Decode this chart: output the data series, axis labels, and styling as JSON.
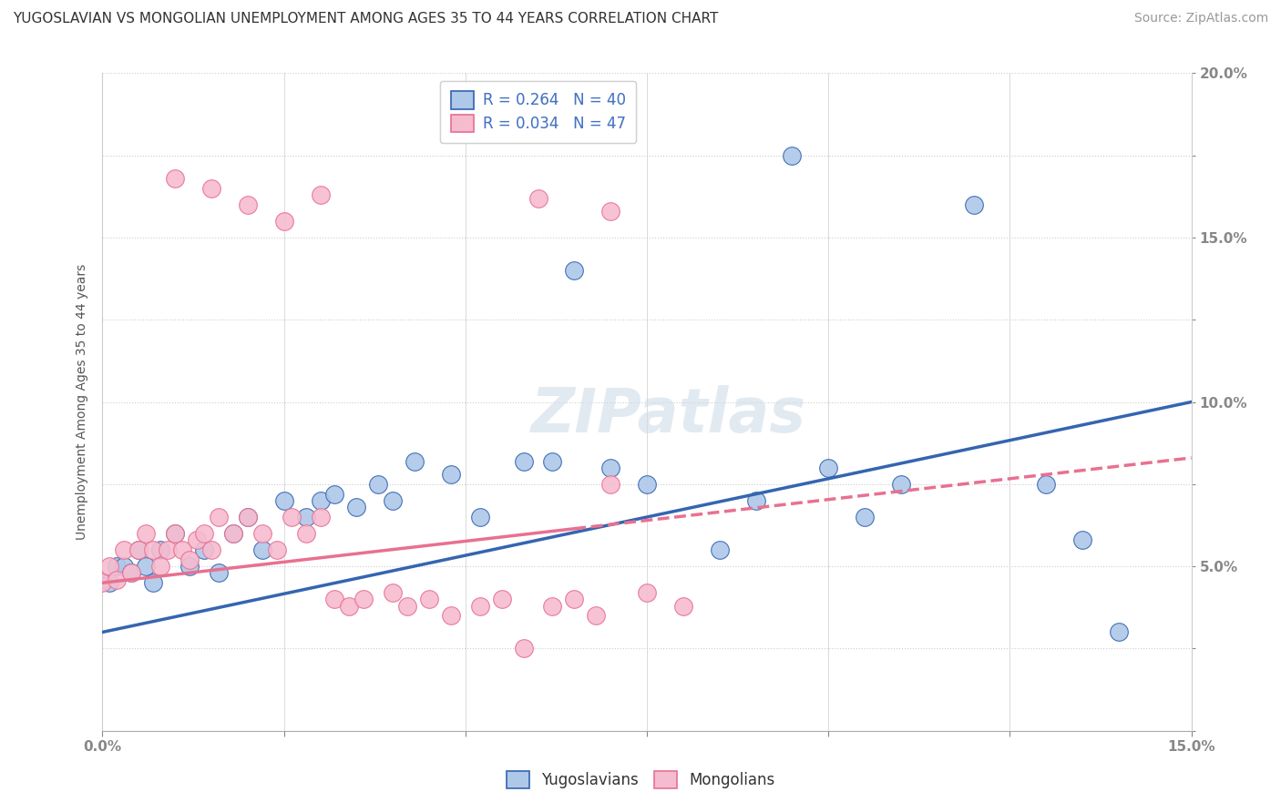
{
  "title": "YUGOSLAVIAN VS MONGOLIAN UNEMPLOYMENT AMONG AGES 35 TO 44 YEARS CORRELATION CHART",
  "source": "Source: ZipAtlas.com",
  "ylabel": "Unemployment Among Ages 35 to 44 years",
  "xlim": [
    0.0,
    0.15
  ],
  "ylim": [
    0.0,
    0.2
  ],
  "xticks": [
    0.0,
    0.025,
    0.05,
    0.075,
    0.1,
    0.125,
    0.15
  ],
  "yticks": [
    0.0,
    0.025,
    0.05,
    0.075,
    0.1,
    0.125,
    0.15,
    0.175,
    0.2
  ],
  "blue_R": 0.264,
  "blue_N": 40,
  "pink_R": 0.034,
  "pink_N": 47,
  "blue_color": "#adc8e8",
  "pink_color": "#f5bcd0",
  "blue_line_color": "#3465b0",
  "pink_line_color": "#e87090",
  "blue_label": "Yugoslavians",
  "pink_label": "Mongolians",
  "watermark_text": "ZIPatlas",
  "blue_trend": [
    0.03,
    0.1
  ],
  "pink_trend_solid_end": 0.065,
  "pink_trend": [
    0.045,
    0.083
  ],
  "blue_x": [
    0.001,
    0.002,
    0.003,
    0.004,
    0.005,
    0.006,
    0.007,
    0.008,
    0.01,
    0.012,
    0.014,
    0.016,
    0.018,
    0.02,
    0.022,
    0.025,
    0.028,
    0.03,
    0.032,
    0.035,
    0.038,
    0.04,
    0.043,
    0.048,
    0.052,
    0.058,
    0.062,
    0.065,
    0.07,
    0.075,
    0.085,
    0.09,
    0.095,
    0.1,
    0.105,
    0.11,
    0.12,
    0.13,
    0.135,
    0.14
  ],
  "blue_y": [
    0.045,
    0.05,
    0.05,
    0.048,
    0.055,
    0.05,
    0.045,
    0.055,
    0.06,
    0.05,
    0.055,
    0.048,
    0.06,
    0.065,
    0.055,
    0.07,
    0.065,
    0.07,
    0.072,
    0.068,
    0.075,
    0.07,
    0.082,
    0.078,
    0.065,
    0.082,
    0.082,
    0.14,
    0.08,
    0.075,
    0.055,
    0.07,
    0.175,
    0.08,
    0.065,
    0.075,
    0.16,
    0.075,
    0.058,
    0.03
  ],
  "pink_x": [
    0.0,
    0.001,
    0.002,
    0.003,
    0.004,
    0.005,
    0.006,
    0.007,
    0.008,
    0.009,
    0.01,
    0.011,
    0.012,
    0.013,
    0.014,
    0.015,
    0.016,
    0.018,
    0.02,
    0.022,
    0.024,
    0.026,
    0.028,
    0.03,
    0.032,
    0.034,
    0.036,
    0.04,
    0.042,
    0.045,
    0.048,
    0.052,
    0.055,
    0.058,
    0.062,
    0.065,
    0.068,
    0.07,
    0.075,
    0.08,
    0.01,
    0.015,
    0.02,
    0.025,
    0.03,
    0.06,
    0.07
  ],
  "pink_y": [
    0.045,
    0.05,
    0.046,
    0.055,
    0.048,
    0.055,
    0.06,
    0.055,
    0.05,
    0.055,
    0.06,
    0.055,
    0.052,
    0.058,
    0.06,
    0.055,
    0.065,
    0.06,
    0.065,
    0.06,
    0.055,
    0.065,
    0.06,
    0.065,
    0.04,
    0.038,
    0.04,
    0.042,
    0.038,
    0.04,
    0.035,
    0.038,
    0.04,
    0.025,
    0.038,
    0.04,
    0.035,
    0.075,
    0.042,
    0.038,
    0.168,
    0.165,
    0.16,
    0.155,
    0.163,
    0.162,
    0.158
  ],
  "title_fontsize": 11,
  "axis_label_fontsize": 10,
  "tick_fontsize": 11,
  "legend_fontsize": 12,
  "source_fontsize": 10
}
